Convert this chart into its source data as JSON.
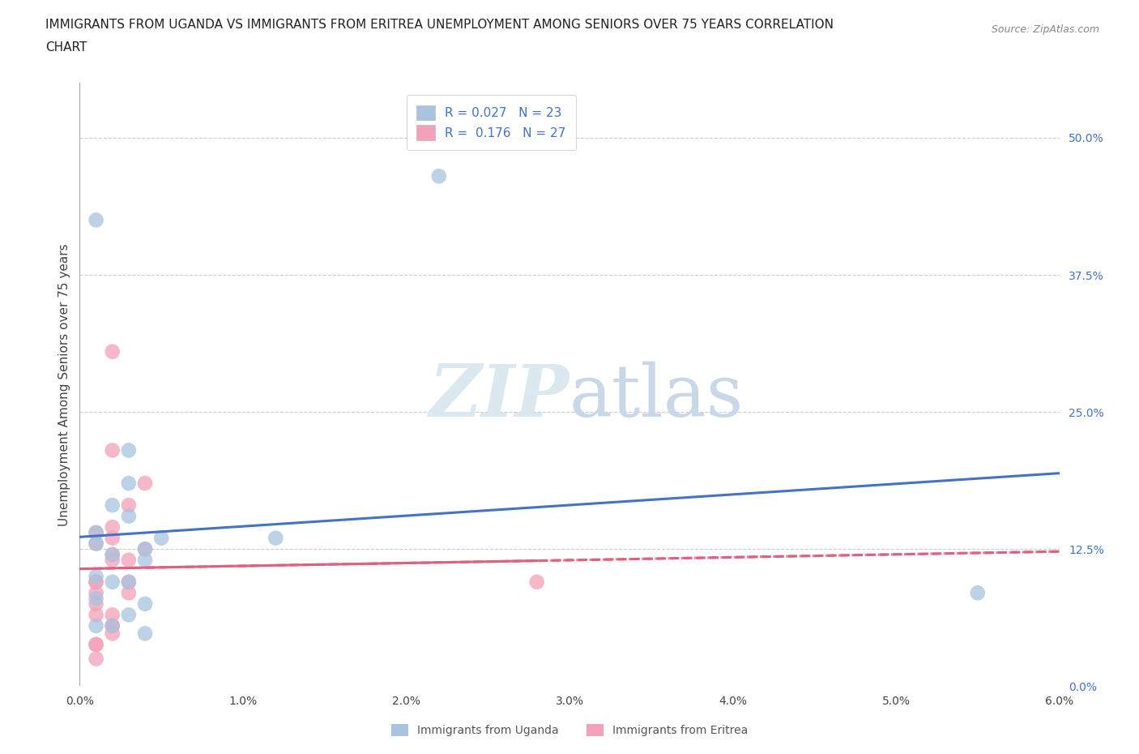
{
  "title_line1": "IMMIGRANTS FROM UGANDA VS IMMIGRANTS FROM ERITREA UNEMPLOYMENT AMONG SENIORS OVER 75 YEARS CORRELATION",
  "title_line2": "CHART",
  "source": "Source: ZipAtlas.com",
  "ylabel": "Unemployment Among Seniors over 75 years",
  "xlim": [
    0.0,
    0.06
  ],
  "ylim": [
    0.0,
    0.55
  ],
  "xticks": [
    0.0,
    0.01,
    0.02,
    0.03,
    0.04,
    0.05,
    0.06
  ],
  "xticklabels": [
    "0.0%",
    "1.0%",
    "2.0%",
    "3.0%",
    "4.0%",
    "5.0%",
    "6.0%"
  ],
  "yticks_right": [
    0.0,
    0.125,
    0.25,
    0.375,
    0.5
  ],
  "yticklabels_right": [
    "0.0%",
    "12.5%",
    "25.0%",
    "37.5%",
    "50.0%"
  ],
  "R_uganda": 0.027,
  "N_uganda": 23,
  "R_eritrea": 0.176,
  "N_eritrea": 27,
  "uganda_color": "#a8c4e0",
  "eritrea_color": "#f4a0b8",
  "uganda_line_color": "#4472c4",
  "eritrea_line_color": "#e06080",
  "watermark_color": "#dce8f0",
  "background_color": "#ffffff",
  "grid_color": "#cccccc",
  "uganda_x": [
    0.002,
    0.001,
    0.003,
    0.005,
    0.002,
    0.002,
    0.001,
    0.001,
    0.001,
    0.001,
    0.001,
    0.002,
    0.003,
    0.004,
    0.003,
    0.003,
    0.004,
    0.004,
    0.003,
    0.004,
    0.012,
    0.055,
    0.022
  ],
  "uganda_y": [
    0.095,
    0.425,
    0.185,
    0.135,
    0.165,
    0.12,
    0.13,
    0.14,
    0.1,
    0.08,
    0.055,
    0.055,
    0.095,
    0.115,
    0.215,
    0.155,
    0.125,
    0.075,
    0.065,
    0.048,
    0.135,
    0.085,
    0.465
  ],
  "eritrea_x": [
    0.001,
    0.001,
    0.002,
    0.002,
    0.002,
    0.001,
    0.001,
    0.001,
    0.001,
    0.002,
    0.002,
    0.002,
    0.003,
    0.002,
    0.003,
    0.002,
    0.001,
    0.001,
    0.001,
    0.003,
    0.004,
    0.004,
    0.003,
    0.028,
    0.002,
    0.002,
    0.001
  ],
  "eritrea_y": [
    0.095,
    0.075,
    0.12,
    0.145,
    0.305,
    0.14,
    0.13,
    0.085,
    0.065,
    0.055,
    0.048,
    0.065,
    0.115,
    0.215,
    0.165,
    0.115,
    0.095,
    0.038,
    0.038,
    0.095,
    0.185,
    0.125,
    0.085,
    0.095,
    0.055,
    0.135,
    0.025
  ],
  "marker_size": 180,
  "title_fontsize": 11,
  "axis_fontsize": 11,
  "tick_fontsize": 10,
  "legend_fontsize": 11
}
